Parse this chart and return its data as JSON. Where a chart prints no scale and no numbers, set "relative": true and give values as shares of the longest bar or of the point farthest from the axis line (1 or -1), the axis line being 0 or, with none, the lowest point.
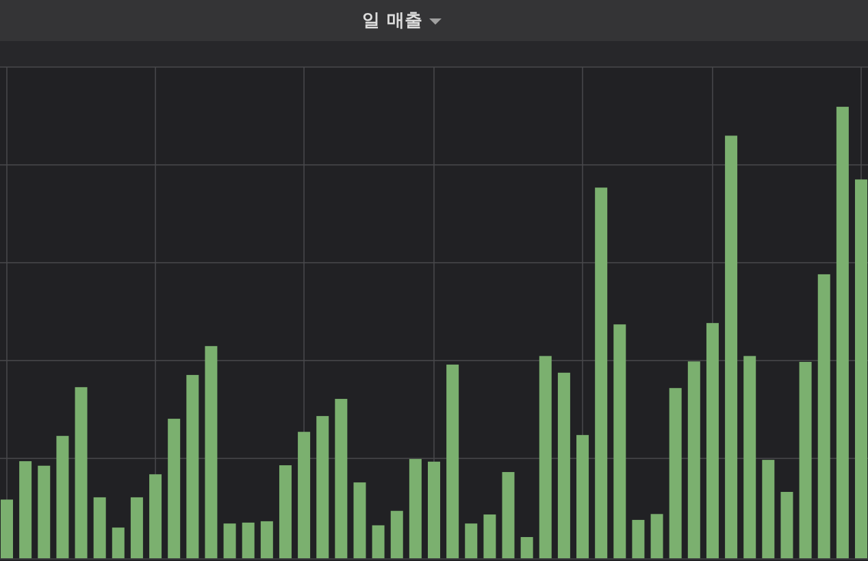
{
  "chart_data": {
    "type": "bar",
    "title": "일 매출",
    "relative": true,
    "color": "#7bb06f",
    "grid": true,
    "legend": false,
    "categories": [
      null,
      null,
      null,
      null,
      null,
      null,
      null,
      null,
      null,
      null,
      null,
      null,
      null,
      null,
      null,
      null,
      null,
      null,
      null,
      null,
      null,
      null,
      null,
      null,
      null,
      null,
      null,
      null,
      null,
      null,
      null,
      null,
      null,
      null,
      null,
      null,
      null,
      null,
      null,
      null,
      null,
      null,
      null,
      null,
      null,
      null,
      null
    ],
    "values": [
      0.13,
      0.215,
      0.205,
      0.271,
      0.379,
      0.135,
      0.068,
      0.135,
      0.186,
      0.309,
      0.406,
      0.47,
      0.077,
      0.079,
      0.082,
      0.206,
      0.28,
      0.315,
      0.353,
      0.168,
      0.073,
      0.105,
      0.22,
      0.214,
      0.429,
      0.077,
      0.097,
      0.191,
      0.047,
      0.448,
      0.411,
      0.273,
      0.821,
      0.518,
      0.085,
      0.098,
      0.377,
      0.436,
      0.521,
      0.936,
      0.448,
      0.218,
      0.147,
      0.435,
      0.629,
      1,
      0.839
    ]
  }
}
